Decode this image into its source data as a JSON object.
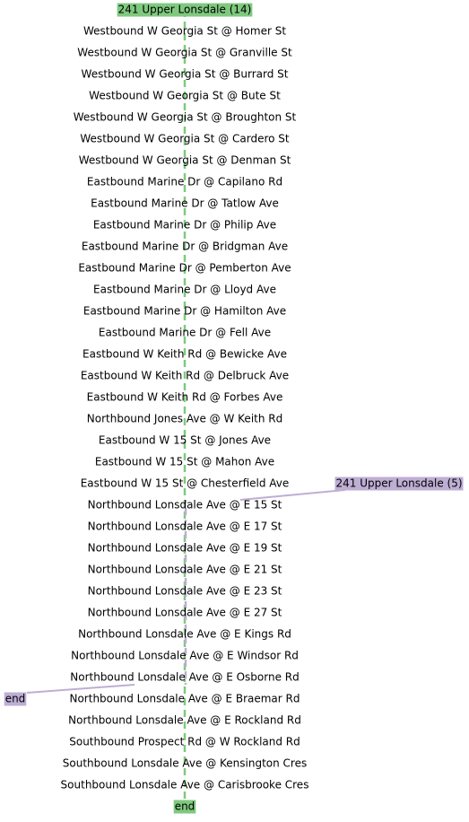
{
  "routes": [
    {
      "label": "241 Upper Lonsdale (14)",
      "end": "end"
    },
    {
      "label": "241 Upper Lonsdale (5)",
      "end": "end"
    }
  ],
  "stops": [
    "Westbound W Georgia St @ Homer St",
    "Westbound W Georgia St @ Granville St",
    "Westbound W Georgia St @ Burrard St",
    "Westbound W Georgia St @ Bute St",
    "Westbound W Georgia St @ Broughton St",
    "Westbound W Georgia St @ Cardero St",
    "Westbound W Georgia St @ Denman St",
    "Eastbound Marine Dr @ Capilano Rd",
    "Eastbound Marine Dr @ Tatlow Ave",
    "Eastbound Marine Dr @ Philip Ave",
    "Eastbound Marine Dr @ Bridgman Ave",
    "Eastbound Marine Dr @ Pemberton Ave",
    "Eastbound Marine Dr @ Lloyd Ave",
    "Eastbound Marine Dr @ Hamilton Ave",
    "Eastbound Marine Dr @ Fell Ave",
    "Eastbound W Keith Rd @ Bewicke Ave",
    "Eastbound W Keith Rd @ Delbruck Ave",
    "Eastbound W Keith Rd @ Forbes Ave",
    "Northbound Jones Ave @ W Keith Rd",
    "Eastbound W 15 St @ Jones Ave",
    "Eastbound W 15 St @ Mahon Ave",
    "Eastbound W 15 St @ Chesterfield Ave",
    "Northbound Lonsdale Ave @ E 15 St",
    "Northbound Lonsdale Ave @ E 17 St",
    "Northbound Lonsdale Ave @ E 19 St",
    "Northbound Lonsdale Ave @ E 21 St",
    "Northbound Lonsdale Ave @ E 23 St",
    "Northbound Lonsdale Ave @ E 27 St",
    "Northbound Lonsdale Ave @ E Kings Rd",
    "Northbound Lonsdale Ave @ E Windsor Rd",
    "Northbound Lonsdale Ave @ E Osborne Rd",
    "Northbound Lonsdale Ave @ E Braemar Rd",
    "Northbound Lonsdale Ave @ E Rockland Rd",
    "Southbound Prospect Rd @ W Rockland Rd",
    "Southbound Lonsdale Ave @ Kensington Cres",
    "Southbound Lonsdale Ave @ Carisbrooke Cres"
  ]
}
